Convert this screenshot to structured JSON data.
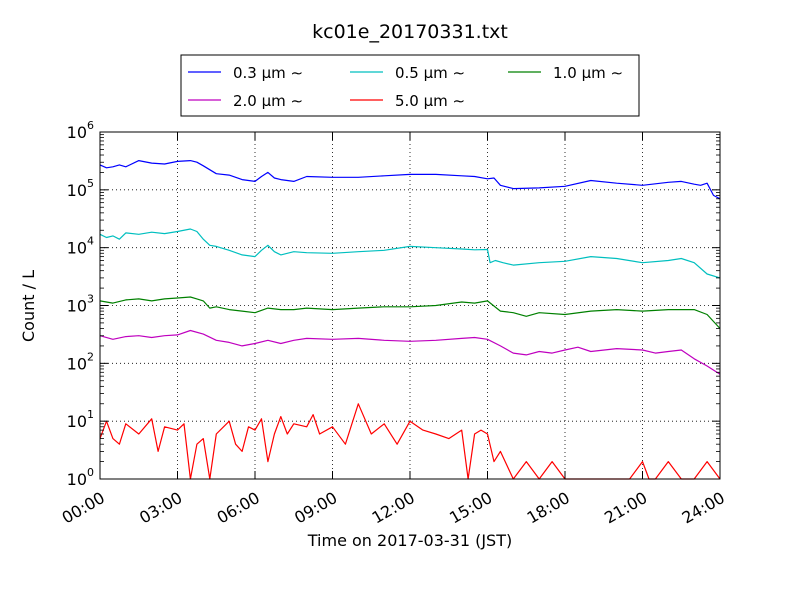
{
  "chart_data": {
    "type": "line",
    "title": "kc01e_20170331.txt",
    "xlabel": "Time on 2017-03-31 (JST)",
    "ylabel": "Count / L",
    "x_axis": {
      "type": "time",
      "range": [
        "00:00",
        "24:00"
      ],
      "tick_labels": [
        "00:00",
        "03:00",
        "06:00",
        "09:00",
        "12:00",
        "15:00",
        "18:00",
        "21:00",
        "24:00"
      ],
      "tick_hours": [
        0,
        3,
        6,
        9,
        12,
        15,
        18,
        21,
        24
      ]
    },
    "y_axis": {
      "scale": "log",
      "range": [
        1,
        1000000
      ],
      "tick_values": [
        1,
        10,
        100,
        1000,
        10000,
        100000,
        1000000
      ],
      "tick_labels": [
        {
          "base": "10",
          "exp": "0"
        },
        {
          "base": "10",
          "exp": "1"
        },
        {
          "base": "10",
          "exp": "2"
        },
        {
          "base": "10",
          "exp": "3"
        },
        {
          "base": "10",
          "exp": "4"
        },
        {
          "base": "10",
          "exp": "5"
        },
        {
          "base": "10",
          "exp": "6"
        }
      ]
    },
    "grid": true,
    "legend_position": "top-center",
    "series": [
      {
        "name": "0.3 μm ∼",
        "color": "#0000ff",
        "x_hours": [
          0,
          0.25,
          0.5,
          0.75,
          1,
          1.5,
          2,
          2.5,
          3,
          3.5,
          3.75,
          4,
          4.5,
          5,
          5.5,
          6,
          6.25,
          6.5,
          6.75,
          7,
          7.5,
          8,
          9,
          10,
          11,
          12,
          13,
          14,
          14.5,
          15,
          15.25,
          15.5,
          16,
          17,
          18,
          19,
          20,
          21,
          22,
          22.5,
          23,
          23.25,
          23.5,
          23.75,
          24
        ],
        "values": [
          270000,
          240000,
          250000,
          270000,
          250000,
          320000,
          290000,
          280000,
          310000,
          320000,
          300000,
          260000,
          190000,
          180000,
          150000,
          140000,
          170000,
          200000,
          160000,
          150000,
          140000,
          170000,
          165000,
          165000,
          175000,
          185000,
          185000,
          175000,
          170000,
          155000,
          160000,
          120000,
          105000,
          108000,
          115000,
          145000,
          130000,
          120000,
          135000,
          140000,
          125000,
          120000,
          130000,
          80000,
          70000
        ]
      },
      {
        "name": "0.5 μm ∼",
        "color": "#00bfbf",
        "x_hours": [
          0,
          0.25,
          0.5,
          0.75,
          1,
          1.5,
          2,
          2.5,
          3,
          3.5,
          3.75,
          4,
          4.25,
          4.5,
          5,
          5.5,
          6,
          6.25,
          6.5,
          6.75,
          7,
          7.5,
          8,
          9,
          10,
          11,
          12,
          13,
          14,
          14.5,
          15,
          15.1,
          15.3,
          15.6,
          16,
          17,
          18,
          19,
          20,
          21,
          22,
          22.5,
          23,
          23.5,
          24
        ],
        "values": [
          17000,
          15000,
          16000,
          14000,
          18000,
          17000,
          18500,
          17500,
          19000,
          21000,
          19000,
          14000,
          11000,
          10500,
          9000,
          7500,
          7000,
          9000,
          11000,
          8500,
          7500,
          8500,
          8200,
          8000,
          8500,
          9000,
          10500,
          10000,
          9500,
          9200,
          9300,
          5500,
          6000,
          5500,
          5000,
          5500,
          5800,
          7000,
          6500,
          5500,
          6000,
          6500,
          5500,
          3500,
          3000
        ]
      },
      {
        "name": "1.0 μm ∼",
        "color": "#008000",
        "x_hours": [
          0,
          0.5,
          1,
          1.5,
          2,
          2.5,
          3,
          3.5,
          3.75,
          4,
          4.25,
          4.5,
          5,
          5.5,
          6,
          6.5,
          7,
          7.5,
          8,
          9,
          10,
          11,
          12,
          13,
          14,
          14.5,
          15,
          15.5,
          16,
          16.5,
          17,
          18,
          19,
          20,
          21,
          22,
          22.5,
          23,
          23.5,
          24
        ],
        "values": [
          1200,
          1100,
          1250,
          1300,
          1200,
          1300,
          1350,
          1400,
          1300,
          1200,
          900,
          950,
          850,
          800,
          750,
          900,
          850,
          850,
          900,
          850,
          900,
          950,
          950,
          1000,
          1150,
          1100,
          1200,
          800,
          750,
          650,
          750,
          700,
          800,
          850,
          800,
          850,
          850,
          850,
          700,
          400
        ]
      },
      {
        "name": "2.0 μm ∼",
        "color": "#bf00bf",
        "x_hours": [
          0,
          0.5,
          1,
          1.5,
          2,
          2.5,
          3,
          3.5,
          4,
          4.5,
          5,
          5.5,
          6,
          6.5,
          7,
          7.5,
          8,
          9,
          10,
          11,
          12,
          13,
          14,
          14.5,
          15,
          15.5,
          16,
          16.5,
          17,
          17.5,
          18,
          18.5,
          19,
          20,
          21,
          21.5,
          22,
          22.5,
          23,
          23.5,
          24
        ],
        "values": [
          300,
          260,
          290,
          300,
          280,
          300,
          310,
          370,
          320,
          250,
          230,
          200,
          220,
          250,
          220,
          250,
          270,
          260,
          270,
          250,
          240,
          250,
          270,
          280,
          260,
          200,
          150,
          140,
          160,
          150,
          170,
          190,
          160,
          180,
          170,
          150,
          160,
          170,
          120,
          90,
          65
        ]
      },
      {
        "name": "5.0 μm ∼",
        "color": "#ff0000",
        "x_hours": [
          0,
          0.25,
          0.5,
          0.75,
          1,
          1.5,
          2,
          2.25,
          2.5,
          3,
          3.25,
          3.5,
          3.75,
          4,
          4.25,
          4.5,
          5,
          5.25,
          5.5,
          5.75,
          6,
          6.25,
          6.5,
          6.75,
          7,
          7.25,
          7.5,
          8,
          8.25,
          8.5,
          9,
          9.5,
          10,
          10.5,
          11,
          11.5,
          12,
          12.5,
          13,
          13.5,
          14,
          14.25,
          14.5,
          14.75,
          15,
          15.25,
          15.5,
          16,
          16.5,
          17,
          17.5,
          18,
          18.5,
          19,
          19.5,
          20,
          20.5,
          21,
          21.25,
          21.5,
          22,
          22.5,
          23,
          23.5,
          24
        ],
        "values": [
          5,
          10,
          5,
          4,
          9,
          6,
          11,
          3,
          8,
          7,
          9,
          1,
          4,
          5,
          1,
          6,
          10,
          4,
          3,
          8,
          7,
          11,
          2,
          6,
          12,
          6,
          9,
          8,
          13,
          6,
          8,
          4,
          20,
          6,
          9,
          4,
          10,
          7,
          6,
          5,
          7,
          1,
          6,
          7,
          6,
          2,
          3,
          1,
          2,
          1,
          2,
          1,
          1,
          1,
          1,
          1,
          1,
          2,
          1,
          1,
          2,
          1,
          1,
          2,
          1
        ]
      }
    ]
  }
}
